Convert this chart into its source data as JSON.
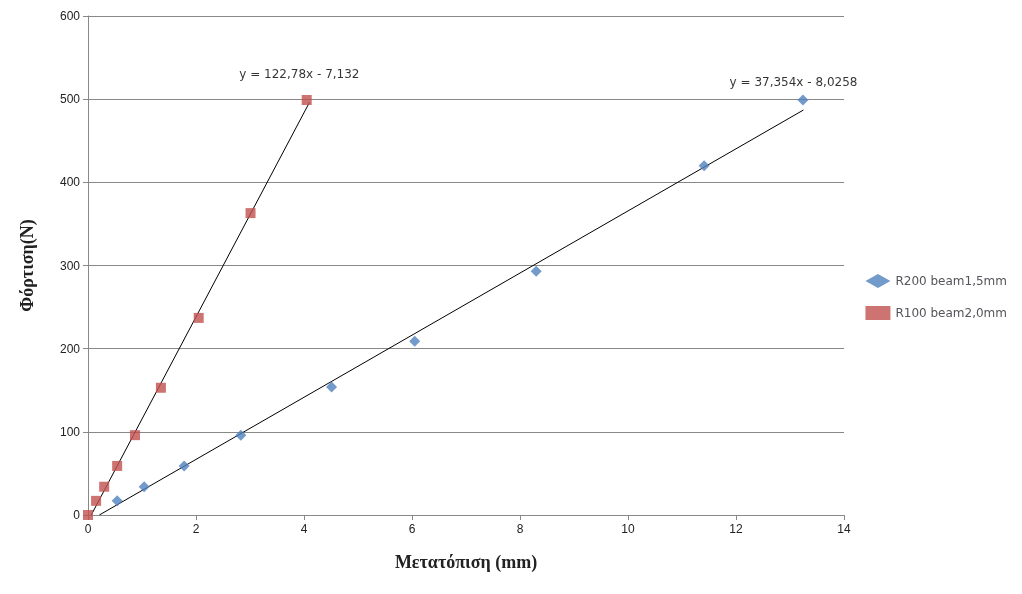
{
  "chart_data": {
    "type": "scatter",
    "xlabel": "Μετατόπιση (mm)",
    "ylabel": "Φόρτιση(N)",
    "xlim": [
      0,
      14
    ],
    "xticks": [
      0,
      2,
      4,
      6,
      8,
      10,
      12,
      14
    ],
    "ylim": [
      0,
      600
    ],
    "yticks": [
      0,
      100,
      200,
      300,
      400,
      500,
      600
    ],
    "grid": "y",
    "legend": "right",
    "series": [
      {
        "name": "R200 beam1,5mm",
        "color": "#4f81bd",
        "marker": "diamond",
        "x": [
          0.54,
          1.04,
          1.78,
          2.83,
          4.51,
          6.05,
          8.3,
          11.41,
          13.24
        ],
        "values": [
          17,
          34,
          59,
          96,
          154,
          209,
          293,
          420,
          499
        ]
      },
      {
        "name": "R100 beam2,0mm",
        "color": "#c0504d",
        "marker": "square",
        "x": [
          0,
          0.15,
          0.3,
          0.54,
          0.87,
          1.35,
          2.05,
          3.01,
          4.05
        ],
        "values": [
          0,
          17,
          34,
          59,
          96,
          153,
          237,
          363,
          499
        ]
      },
      {
        "type": "line",
        "color": "#000000",
        "marker": "none",
        "x": [
          0.06,
          4.1
        ],
        "values": [
          0,
          496
        ]
      },
      {
        "type": "line",
        "color": "#000000",
        "marker": "none",
        "x": [
          0.21,
          13.25
        ],
        "values": [
          0,
          487
        ]
      }
    ],
    "annotations": [
      "y = 122,78x - 7,132",
      "y = 37,354x - 8,0258"
    ]
  }
}
